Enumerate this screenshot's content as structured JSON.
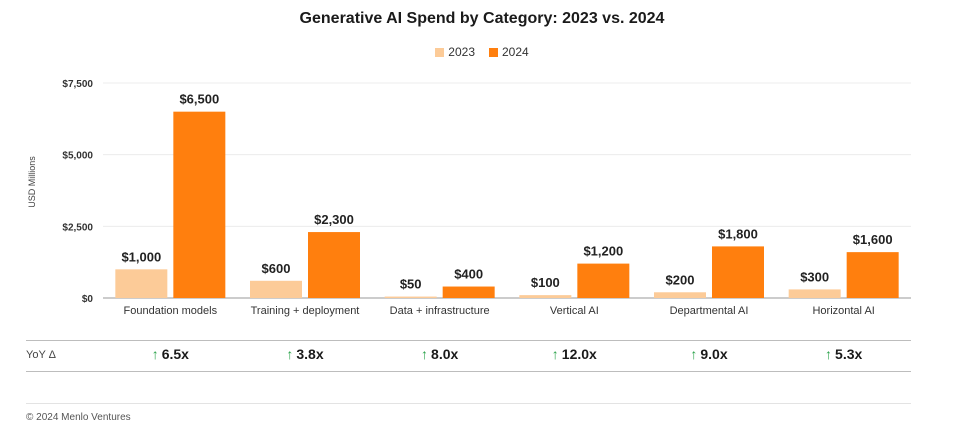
{
  "chart_data": {
    "type": "bar",
    "title": "Generative AI Spend by Category: 2023 vs. 2024",
    "ylabel": "USD Millions",
    "xlabel": "",
    "ylim": [
      0,
      7500
    ],
    "yticks": [
      0,
      2500,
      5000,
      7500
    ],
    "ytick_labels": [
      "$0",
      "$2,500",
      "$5,000",
      "$7,500"
    ],
    "categories": [
      "Foundation models",
      "Training + deployment",
      "Data + infrastructure",
      "Vertical AI",
      "Departmental AI",
      "Horizontal AI"
    ],
    "series": [
      {
        "name": "2023",
        "color": "#fccb98",
        "values": [
          1000,
          600,
          50,
          100,
          200,
          300
        ],
        "labels": [
          "$1,000",
          "$600",
          "$50",
          "$100",
          "$200",
          "$300"
        ]
      },
      {
        "name": "2024",
        "color": "#ff7f0e",
        "values": [
          6500,
          2300,
          400,
          1200,
          1800,
          1600
        ],
        "labels": [
          "$6,500",
          "$2,300",
          "$400",
          "$1,200",
          "$1,800",
          "$1,600"
        ]
      }
    ],
    "legend_position": "top-center",
    "grid": true
  },
  "yoy": {
    "label": "YoY Δ",
    "arrow": "↑",
    "arrow_color": "#2aa34a",
    "values": [
      "6.5x",
      "3.8x",
      "8.0x",
      "12.0x",
      "9.0x",
      "5.3x"
    ]
  },
  "footer": "© 2024 Menlo Ventures"
}
